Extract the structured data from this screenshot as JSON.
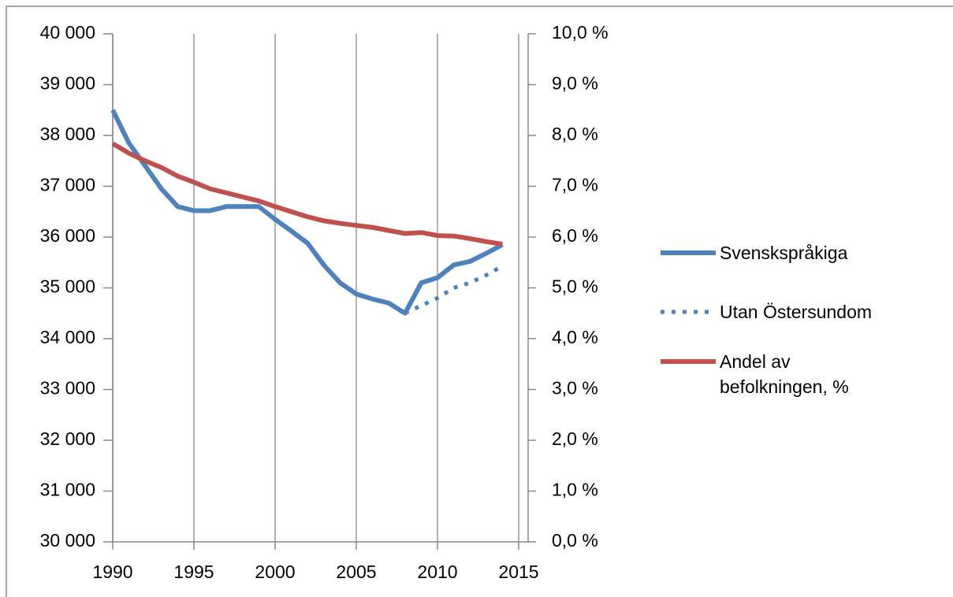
{
  "chart_data": {
    "type": "line",
    "x": [
      1990,
      1991,
      1992,
      1993,
      1994,
      1995,
      1996,
      1997,
      1998,
      1999,
      2000,
      2001,
      2002,
      2003,
      2004,
      2005,
      2006,
      2007,
      2008,
      2009,
      2010,
      2011,
      2012,
      2013,
      2014
    ],
    "series": [
      {
        "name": "Svenskspråkiga",
        "color": "#4f81bd",
        "style": "solid",
        "values": [
          38500,
          37850,
          37400,
          36950,
          36600,
          36520,
          36520,
          36600,
          36600,
          36600,
          36350,
          36120,
          35880,
          35450,
          35100,
          34880,
          34780,
          34700,
          34500,
          35100,
          35200,
          35450,
          35520,
          35680,
          35850
        ]
      },
      {
        "name": "Utan Östersundom",
        "color": "#4f81bd",
        "style": "dotted",
        "values": [
          null,
          null,
          null,
          null,
          null,
          null,
          null,
          null,
          null,
          null,
          null,
          null,
          null,
          null,
          null,
          null,
          null,
          null,
          34500,
          34650,
          34800,
          35000,
          35100,
          35250,
          35430
        ]
      },
      {
        "name": "Andel av befolkningen, %",
        "color": "#c0504d",
        "style": "solid",
        "axis": "y2",
        "values": [
          7.84,
          7.65,
          7.5,
          7.37,
          7.2,
          7.08,
          6.95,
          6.87,
          6.79,
          6.71,
          6.6,
          6.5,
          6.4,
          6.32,
          6.27,
          6.23,
          6.19,
          6.13,
          6.07,
          6.09,
          6.03,
          6.02,
          5.97,
          5.91,
          5.86
        ]
      }
    ],
    "xlim": [
      1990,
      2015
    ],
    "xticks": [
      1990,
      1995,
      2000,
      2005,
      2010,
      2015
    ],
    "ylim": [
      30000,
      40000
    ],
    "yticks": [
      {
        "value": 30000,
        "label": "30 000"
      },
      {
        "value": 31000,
        "label": "31 000"
      },
      {
        "value": 32000,
        "label": "32 000"
      },
      {
        "value": 33000,
        "label": "33 000"
      },
      {
        "value": 34000,
        "label": "34 000"
      },
      {
        "value": 35000,
        "label": "35 000"
      },
      {
        "value": 36000,
        "label": "36 000"
      },
      {
        "value": 37000,
        "label": "37 000"
      },
      {
        "value": 38000,
        "label": "38 000"
      },
      {
        "value": 39000,
        "label": "39 000"
      },
      {
        "value": 40000,
        "label": "40 000"
      }
    ],
    "y2lim": [
      0,
      10
    ],
    "y2ticks": [
      {
        "value": 0,
        "label": "0,0 %"
      },
      {
        "value": 1,
        "label": "1,0 %"
      },
      {
        "value": 2,
        "label": "2,0 %"
      },
      {
        "value": 3,
        "label": "3,0 %"
      },
      {
        "value": 4,
        "label": "4,0 %"
      },
      {
        "value": 5,
        "label": "5,0 %"
      },
      {
        "value": 6,
        "label": "6,0 %"
      },
      {
        "value": 7,
        "label": "7,0 %"
      },
      {
        "value": 8,
        "label": "8,0 %"
      },
      {
        "value": 9,
        "label": "9,0 %"
      },
      {
        "value": 10,
        "label": "10,0 %"
      }
    ],
    "grid": "x",
    "legend": "right"
  }
}
